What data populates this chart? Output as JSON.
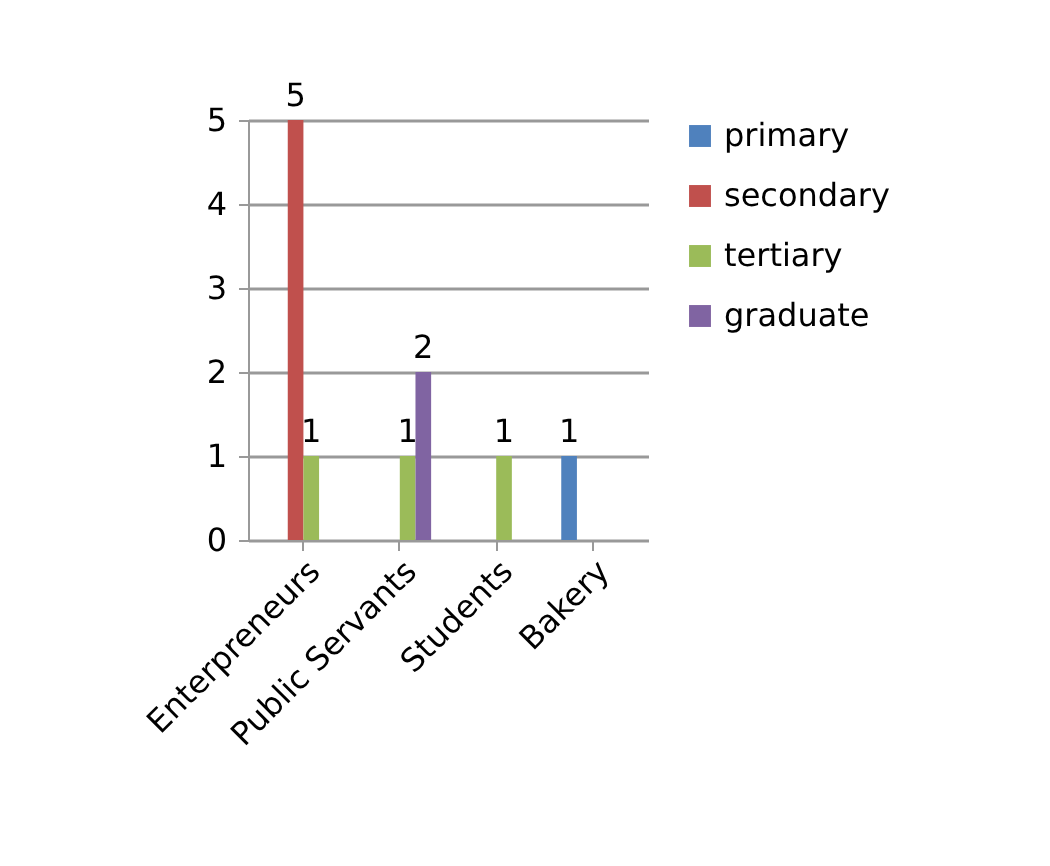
{
  "chart_data": {
    "type": "bar",
    "categories": [
      "Enterpreneurs",
      "Public Servants",
      "Students",
      "Bakery"
    ],
    "series": [
      {
        "name": "primary",
        "color": "#4f81bd",
        "values": [
          null,
          null,
          null,
          1
        ]
      },
      {
        "name": "secondary",
        "color": "#c0504d",
        "values": [
          5,
          null,
          null,
          null
        ]
      },
      {
        "name": "tertiary",
        "color": "#9bbb59",
        "values": [
          1,
          1,
          1,
          null
        ]
      },
      {
        "name": "graduate",
        "color": "#8064a2",
        "values": [
          null,
          2,
          null,
          null
        ]
      }
    ],
    "ylim": [
      0,
      5
    ],
    "yticks": [
      0,
      1,
      2,
      3,
      4,
      5
    ],
    "grid": "y",
    "legend": "right",
    "data_labels": true
  }
}
